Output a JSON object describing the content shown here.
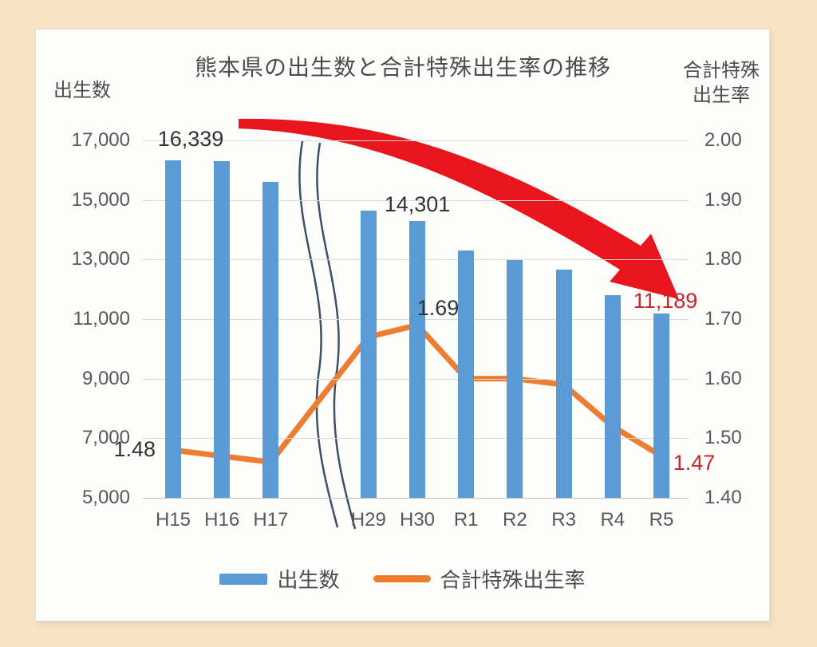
{
  "chart_data": {
    "type": "combo-bar-line",
    "title": "熊本県の出生数と合計特殊出生率の推移",
    "categories": [
      "H15",
      "H16",
      "H17",
      "H29",
      "H30",
      "R1",
      "R2",
      "R3",
      "R4",
      "R5"
    ],
    "axis_break_after": "H17",
    "series": [
      {
        "name": "出生数",
        "type": "bar",
        "axis": "left",
        "color": "#5b9bd5",
        "values": [
          16339,
          16300,
          15600,
          14650,
          14301,
          13300,
          12980,
          12650,
          11800,
          11189
        ]
      },
      {
        "name": "合計特殊出生率",
        "type": "line",
        "axis": "right",
        "color": "#ed7d31",
        "values": [
          1.48,
          1.47,
          1.46,
          1.67,
          1.69,
          1.6,
          1.6,
          1.59,
          1.52,
          1.47
        ]
      }
    ],
    "left_axis": {
      "title": "出生数",
      "min": 5000,
      "max": 17000,
      "ticks": [
        "5,000",
        "7,000",
        "9,000",
        "11,000",
        "13,000",
        "15,000",
        "17,000"
      ]
    },
    "right_axis": {
      "title_lines": [
        "合計特殊",
        "出生率"
      ],
      "min": 1.4,
      "max": 2.0,
      "ticks": [
        "1.40",
        "1.50",
        "1.60",
        "1.70",
        "1.80",
        "1.90",
        "2.00"
      ]
    },
    "annotations": [
      {
        "id": "first-bar-label",
        "text": "16,339",
        "color": "#333333"
      },
      {
        "id": "h30-bar-label",
        "text": "14,301",
        "color": "#333333"
      },
      {
        "id": "h30-rate-label",
        "text": "1.69",
        "color": "#333333"
      },
      {
        "id": "first-rate-label",
        "text": "1.48",
        "color": "#333333"
      },
      {
        "id": "last-bar-label",
        "text": "11,189",
        "color": "#c9252d"
      },
      {
        "id": "last-rate-label",
        "text": "1.47",
        "color": "#c9252d"
      }
    ],
    "legend": [
      {
        "label": "出生数",
        "swatch": "bar"
      },
      {
        "label": "合計特殊出生率",
        "swatch": "line"
      }
    ],
    "grid": true,
    "legend_position": "bottom",
    "trend_arrow": "decline",
    "colors": {
      "bar": "#5b9bd5",
      "line": "#ed7d31",
      "arrow": "#e8151c",
      "red_label": "#c9252d",
      "axis_text": "#585858",
      "background": "#fae4c6"
    }
  }
}
